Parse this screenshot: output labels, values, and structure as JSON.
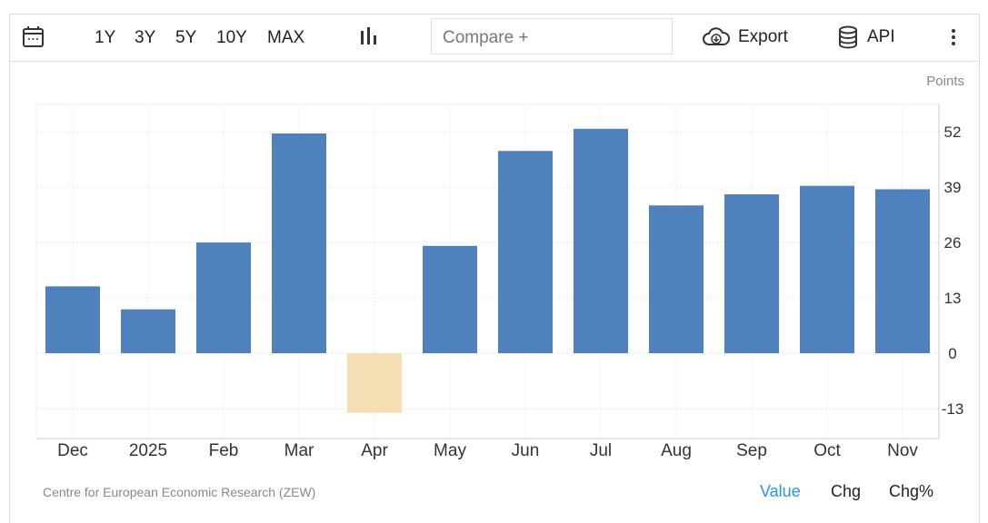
{
  "toolbar": {
    "ranges": [
      "1Y",
      "3Y",
      "5Y",
      "10Y",
      "MAX"
    ],
    "compare_placeholder": "Compare +",
    "export_label": "Export",
    "api_label": "API"
  },
  "unit_label": "Points",
  "source": "Centre for European Economic Research (ZEW)",
  "modes": {
    "value": "Value",
    "chg": "Chg",
    "chgpct": "Chg%"
  },
  "colors": {
    "positive": "#4f81bd",
    "negative": "#f5deb3",
    "active_mode": "#2196f3"
  },
  "chart_data": {
    "type": "bar",
    "categories": [
      "Dec",
      "2025",
      "Feb",
      "Mar",
      "Apr",
      "May",
      "Jun",
      "Jul",
      "Aug",
      "Sep",
      "Oct",
      "Nov"
    ],
    "values": [
      15.7,
      10.3,
      26.0,
      51.6,
      -14.0,
      25.2,
      47.5,
      52.7,
      34.7,
      37.3,
      39.3,
      38.5
    ],
    "ylabel": "Points",
    "yticks": [
      52,
      39,
      26,
      13,
      0,
      -13
    ],
    "ylim": [
      -20,
      58
    ],
    "grid": true,
    "legend": "none"
  }
}
